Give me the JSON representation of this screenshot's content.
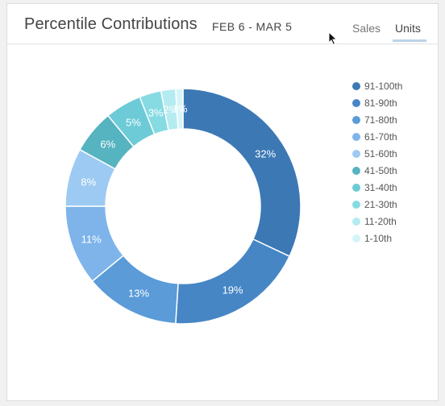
{
  "header": {
    "title": "Percentile Contributions",
    "date_range": "FEB 6 - MAR 5",
    "tabs": [
      {
        "label": "Sales",
        "active": false
      },
      {
        "label": "Units",
        "active": true
      }
    ]
  },
  "chart_data": {
    "type": "pie",
    "donut": true,
    "legend_position": "right",
    "categories": [
      "91-100th",
      "81-90th",
      "71-80th",
      "61-70th",
      "51-60th",
      "41-50th",
      "31-40th",
      "21-30th",
      "11-20th",
      "1-10th"
    ],
    "values": [
      32,
      19,
      13,
      11,
      8,
      6,
      5,
      3,
      2,
      1
    ],
    "labels": [
      "32%",
      "19%",
      "13%",
      "11%",
      "8%",
      "6%",
      "5%",
      "3%",
      "2%",
      "1%"
    ],
    "colors": [
      "#3c78b4",
      "#4686c5",
      "#5a9bd8",
      "#7eb4ea",
      "#9dcaf2",
      "#56b3c0",
      "#6ccbd6",
      "#86dbe2",
      "#b4ebf0",
      "#d5f5f8"
    ]
  }
}
